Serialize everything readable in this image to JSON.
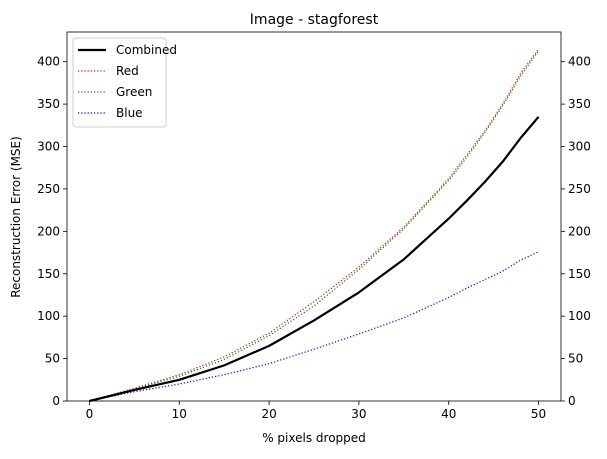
{
  "chart_data": {
    "type": "line",
    "title": "Image - stagforest",
    "xlabel": "% pixels dropped",
    "ylabel": "Reconstruction Error (MSE)",
    "xlim": [
      -2.5,
      52.5
    ],
    "ylim": [
      0,
      435
    ],
    "xticks": [
      0,
      10,
      20,
      30,
      40,
      50
    ],
    "yticks": [
      0,
      50,
      100,
      150,
      200,
      250,
      300,
      350,
      400
    ],
    "right_axis_ticks": true,
    "grid": false,
    "legend_position": "upper left",
    "x": [
      0,
      5,
      10,
      15,
      20,
      25,
      30,
      35,
      40,
      42,
      44,
      46,
      48,
      50
    ],
    "series": [
      {
        "name": "Combined",
        "color": "#000000",
        "style": "solid",
        "values": [
          0,
          13,
          25,
          42,
          65,
          95,
          128,
          167,
          215,
          236,
          258,
          282,
          310,
          335
        ]
      },
      {
        "name": "Red",
        "color": "#ff0000",
        "style": "dotted",
        "values": [
          0,
          15,
          31,
          52,
          80,
          117,
          158,
          205,
          262,
          290,
          318,
          350,
          386,
          415
        ]
      },
      {
        "name": "Green",
        "color": "#008000",
        "style": "dotted",
        "values": [
          0,
          14,
          29,
          49,
          77,
          112,
          155,
          203,
          260,
          287,
          316,
          348,
          383,
          413
        ]
      },
      {
        "name": "Blue",
        "color": "#0000ff",
        "style": "dotted",
        "values": [
          0,
          11,
          20,
          31,
          44,
          61,
          79,
          98,
          122,
          133,
          143,
          153,
          166,
          176
        ]
      }
    ]
  }
}
